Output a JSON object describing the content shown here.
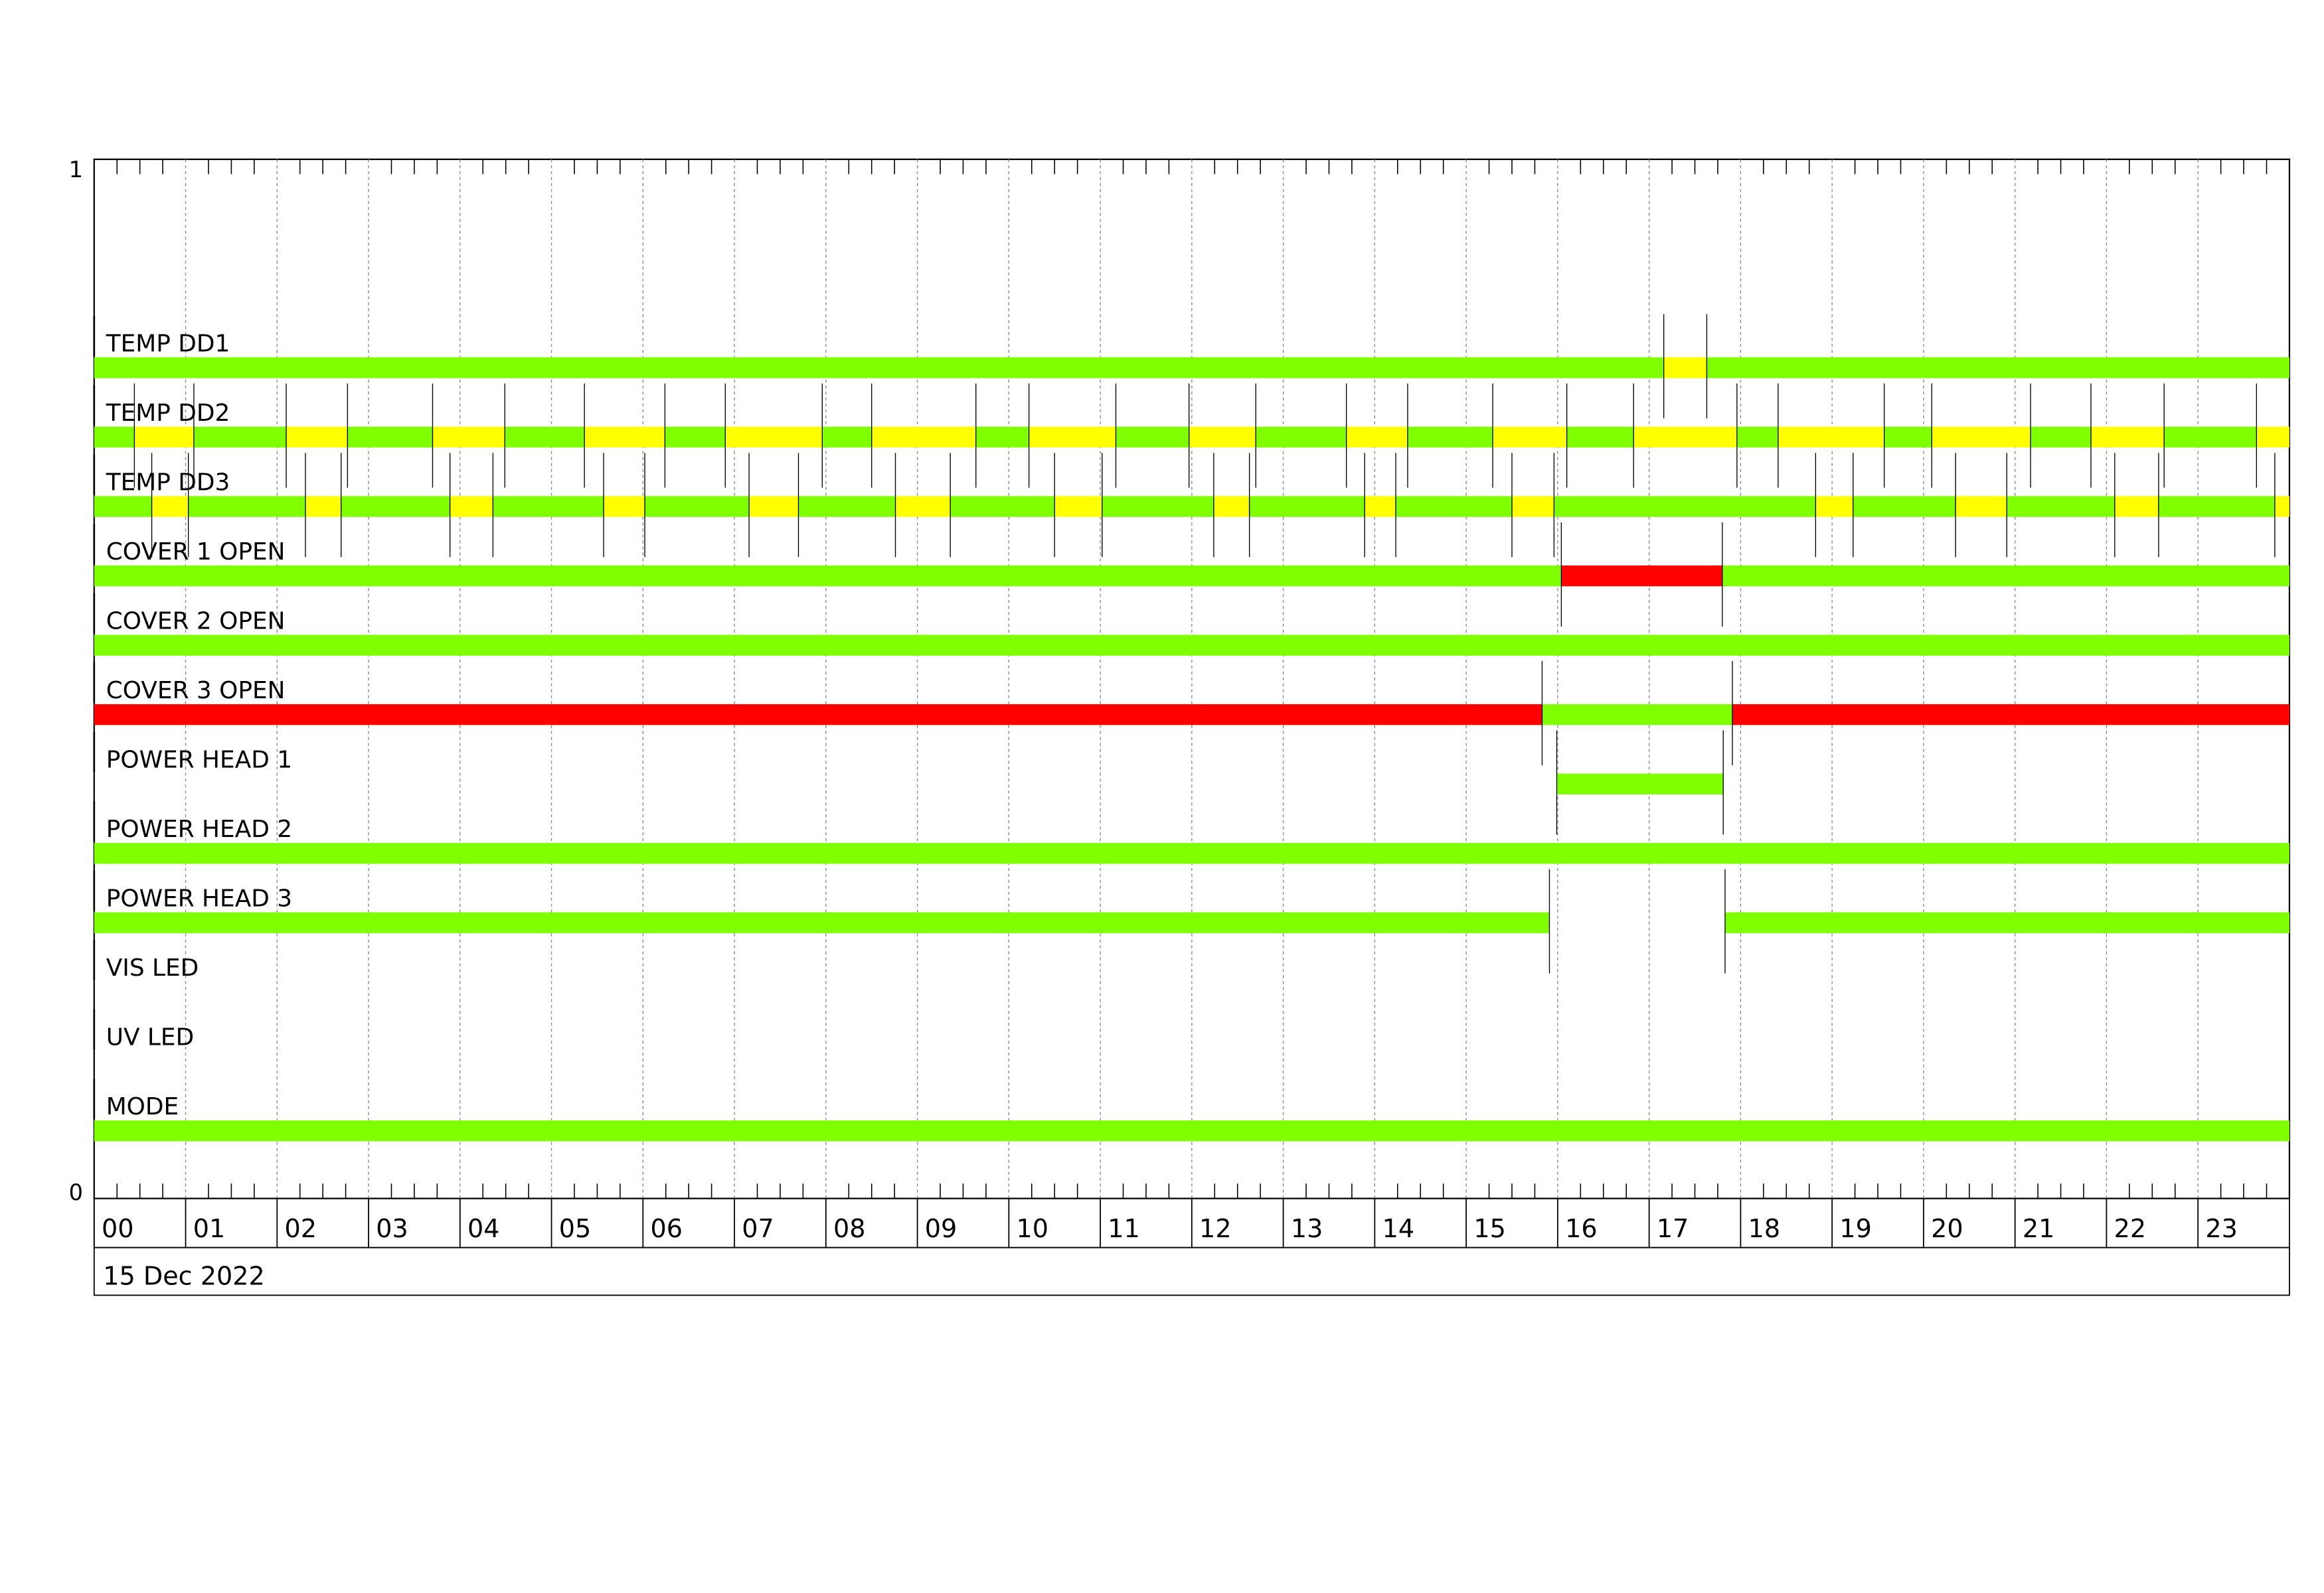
{
  "chart_data": {
    "type": "timeline",
    "y_tick_labels": [
      "1",
      "0"
    ],
    "x_tick_labels": [
      "00",
      "01",
      "02",
      "03",
      "04",
      "05",
      "06",
      "07",
      "08",
      "09",
      "10",
      "11",
      "12",
      "13",
      "14",
      "15",
      "16",
      "17",
      "18",
      "19",
      "20",
      "21",
      "22",
      "23"
    ],
    "xlim_hours": [
      0,
      24
    ],
    "date_label": "15 Dec 2022",
    "grid": true,
    "colors": {
      "g": "#7fff00",
      "y": "#ffff00",
      "r": "#ff0000"
    },
    "rows": [
      {
        "label": "TEMP  DD1",
        "segments": [
          [
            0,
            17.16,
            "g"
          ],
          [
            17.16,
            17.63,
            "y"
          ],
          [
            17.63,
            24,
            "g"
          ]
        ]
      },
      {
        "label": "TEMP  DD2",
        "segments": [
          [
            0,
            0.44,
            "g"
          ],
          [
            0.44,
            1.09,
            "y"
          ],
          [
            1.09,
            2.1,
            "g"
          ],
          [
            2.1,
            2.77,
            "y"
          ],
          [
            2.77,
            3.7,
            "g"
          ],
          [
            3.7,
            4.49,
            "y"
          ],
          [
            4.49,
            5.36,
            "g"
          ],
          [
            5.36,
            6.24,
            "y"
          ],
          [
            6.24,
            6.9,
            "g"
          ],
          [
            6.9,
            7.96,
            "y"
          ],
          [
            7.96,
            8.5,
            "g"
          ],
          [
            8.5,
            9.64,
            "y"
          ],
          [
            9.64,
            10.22,
            "g"
          ],
          [
            10.22,
            11.17,
            "y"
          ],
          [
            11.17,
            11.97,
            "g"
          ],
          [
            11.97,
            12.7,
            "y"
          ],
          [
            12.7,
            13.69,
            "g"
          ],
          [
            13.69,
            14.36,
            "y"
          ],
          [
            14.36,
            15.29,
            "g"
          ],
          [
            15.29,
            16.1,
            "y"
          ],
          [
            16.1,
            16.83,
            "g"
          ],
          [
            16.83,
            17.96,
            "y"
          ],
          [
            17.96,
            18.41,
            "g"
          ],
          [
            18.41,
            19.57,
            "y"
          ],
          [
            19.57,
            20.09,
            "g"
          ],
          [
            20.09,
            21.17,
            "y"
          ],
          [
            21.17,
            21.83,
            "g"
          ],
          [
            21.83,
            22.63,
            "y"
          ],
          [
            22.63,
            23.64,
            "g"
          ],
          [
            23.64,
            24,
            "y"
          ]
        ]
      },
      {
        "label": "TEMP  DD3",
        "segments": [
          [
            0,
            0.63,
            "g"
          ],
          [
            0.63,
            1.03,
            "y"
          ],
          [
            1.03,
            2.31,
            "g"
          ],
          [
            2.31,
            2.7,
            "y"
          ],
          [
            2.7,
            3.89,
            "g"
          ],
          [
            3.89,
            4.36,
            "y"
          ],
          [
            4.36,
            5.57,
            "g"
          ],
          [
            5.57,
            6.02,
            "y"
          ],
          [
            6.02,
            7.16,
            "g"
          ],
          [
            7.16,
            7.7,
            "y"
          ],
          [
            7.7,
            8.76,
            "g"
          ],
          [
            8.76,
            9.36,
            "y"
          ],
          [
            9.36,
            10.5,
            "g"
          ],
          [
            10.5,
            11.02,
            "y"
          ],
          [
            11.02,
            12.24,
            "g"
          ],
          [
            12.24,
            12.63,
            "y"
          ],
          [
            12.63,
            13.89,
            "g"
          ],
          [
            13.89,
            14.23,
            "y"
          ],
          [
            14.23,
            15.5,
            "g"
          ],
          [
            15.5,
            15.96,
            "y"
          ],
          [
            15.96,
            18.82,
            "g"
          ],
          [
            18.82,
            19.23,
            "y"
          ],
          [
            19.23,
            20.35,
            "g"
          ],
          [
            20.35,
            20.91,
            "y"
          ],
          [
            20.91,
            22.09,
            "g"
          ],
          [
            22.09,
            22.57,
            "y"
          ],
          [
            22.57,
            23.84,
            "g"
          ],
          [
            23.84,
            24,
            "y"
          ]
        ]
      },
      {
        "label": "COVER  1  OPEN",
        "segments": [
          [
            0,
            16.04,
            "g"
          ],
          [
            16.04,
            17.8,
            "r"
          ],
          [
            17.8,
            24,
            "g"
          ]
        ]
      },
      {
        "label": "COVER  2  OPEN",
        "segments": [
          [
            0,
            24,
            "g"
          ]
        ]
      },
      {
        "label": "COVER  3  OPEN",
        "segments": [
          [
            0,
            15.83,
            "r"
          ],
          [
            15.83,
            17.91,
            "g"
          ],
          [
            17.91,
            24,
            "r"
          ]
        ]
      },
      {
        "label": "POWER  HEAD  1",
        "segments": [
          [
            15.99,
            17.81,
            "g"
          ]
        ]
      },
      {
        "label": "POWER  HEAD  2",
        "segments": [
          [
            0,
            24,
            "g"
          ]
        ]
      },
      {
        "label": "POWER  HEAD  3",
        "segments": [
          [
            0,
            15.91,
            "g"
          ],
          [
            17.83,
            24,
            "g"
          ]
        ]
      },
      {
        "label": "VIS  LED",
        "segments": []
      },
      {
        "label": "UV  LED",
        "segments": []
      },
      {
        "label": "MODE",
        "segments": [
          [
            0,
            24,
            "g"
          ]
        ]
      }
    ]
  }
}
